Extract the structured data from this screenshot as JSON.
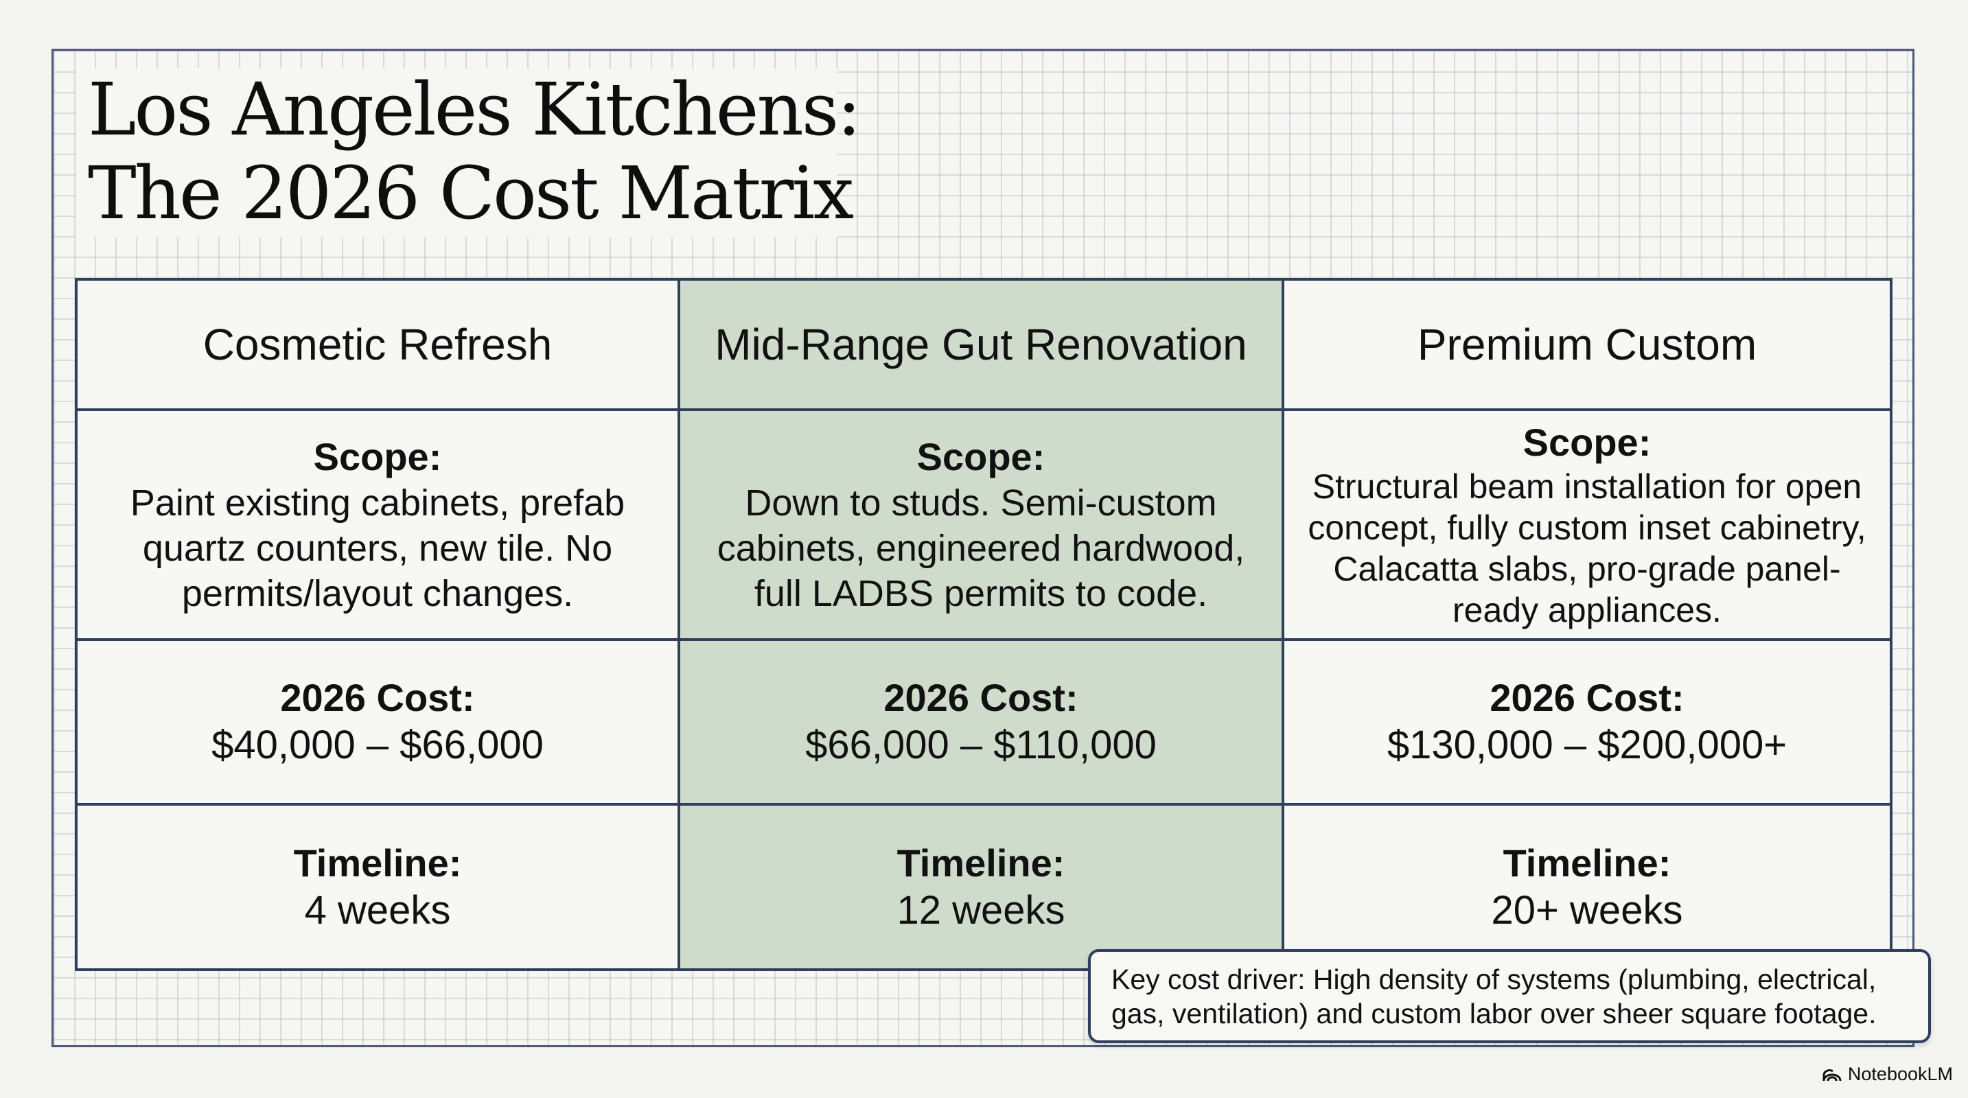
{
  "title": {
    "line1": "Los Angeles Kitchens:",
    "line2": "The 2026 Cost Matrix"
  },
  "columns": [
    {
      "header": "Cosmetic Refresh",
      "scope_label": "Scope:",
      "scope_text": "Paint existing cabinets, prefab quartz counters, new tile. No permits/layout changes.",
      "cost_label": "2026 Cost:",
      "cost_value": "$40,000 – $66,000",
      "timeline_label": "Timeline:",
      "timeline_value": "4 weeks"
    },
    {
      "header": "Mid-Range Gut Renovation",
      "scope_label": "Scope:",
      "scope_text": "Down to studs. Semi-custom cabinets, engineered hardwood, full LADBS permits to code.",
      "cost_label": "2026 Cost:",
      "cost_value": "$66,000 – $110,000",
      "timeline_label": "Timeline:",
      "timeline_value": "12 weeks"
    },
    {
      "header": "Premium Custom",
      "scope_label": "Scope:",
      "scope_text": "Structural beam installation for open concept, fully custom inset cabinetry, Calacatta slabs, pro-grade panel-ready appliances.",
      "cost_label": "2026 Cost:",
      "cost_value": "$130,000 – $200,000+",
      "timeline_label": "Timeline:",
      "timeline_value": "20+ weeks"
    }
  ],
  "note": "Key cost driver: High density of systems (plumbing, electrical, gas, ventilation) and custom labor over sheer square footage.",
  "brand": {
    "name": "NotebookLM",
    "icon": "notebooklm-logo-icon"
  },
  "colors": {
    "highlight_column": "#cfdccb",
    "grid_line": "#2f3f5e",
    "background": "#f4f4f1"
  }
}
